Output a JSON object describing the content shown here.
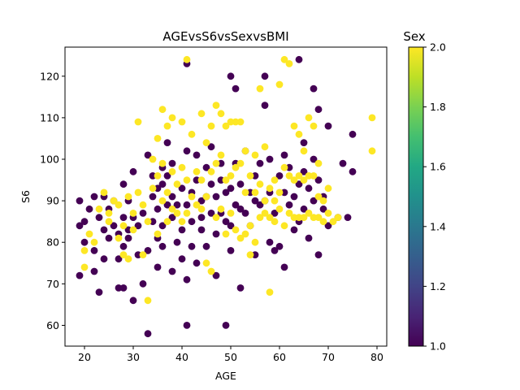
{
  "chart_data": {
    "type": "scatter",
    "title": "AGEvsS6vsSexvsBMI",
    "xlabel": "AGE",
    "ylabel": "S6",
    "xlim": [
      16,
      82
    ],
    "ylim": [
      55,
      127
    ],
    "xticks": [
      20,
      30,
      40,
      50,
      60,
      70,
      80
    ],
    "yticks": [
      60,
      70,
      80,
      90,
      100,
      110,
      120
    ],
    "grid": false,
    "colorbar": {
      "label": "Sex",
      "range": [
        1.0,
        2.0
      ],
      "ticks": [
        "1.0",
        "1.2",
        "1.4",
        "1.6",
        "1.8",
        "2.0"
      ],
      "colormap": "viridis"
    },
    "colors": {
      "sex_1": "#440154",
      "sex_2": "#fde725"
    },
    "series": [
      {
        "sex": 1,
        "points": [
          [
            19,
            72
          ],
          [
            19,
            84
          ],
          [
            19,
            90
          ],
          [
            20,
            85
          ],
          [
            20,
            80
          ],
          [
            21,
            88
          ],
          [
            22,
            91
          ],
          [
            22,
            78
          ],
          [
            22,
            73
          ],
          [
            23,
            68
          ],
          [
            23,
            86
          ],
          [
            24,
            91
          ],
          [
            24,
            83
          ],
          [
            24,
            76
          ],
          [
            25,
            81
          ],
          [
            25,
            88
          ],
          [
            26,
            84
          ],
          [
            26,
            90
          ],
          [
            27,
            76
          ],
          [
            27,
            69
          ],
          [
            27,
            82
          ],
          [
            28,
            86
          ],
          [
            28,
            69
          ],
          [
            28,
            79
          ],
          [
            28,
            94
          ],
          [
            29,
            90
          ],
          [
            29,
            81
          ],
          [
            29,
            83
          ],
          [
            30,
            97
          ],
          [
            30,
            86
          ],
          [
            30,
            66
          ],
          [
            31,
            77
          ],
          [
            31,
            84
          ],
          [
            32,
            87
          ],
          [
            32,
            70
          ],
          [
            33,
            78
          ],
          [
            33,
            58
          ],
          [
            33,
            101
          ],
          [
            34,
            85
          ],
          [
            34,
            91
          ],
          [
            34,
            96
          ],
          [
            35,
            88
          ],
          [
            35,
            81
          ],
          [
            35,
            74
          ],
          [
            35,
            93
          ],
          [
            36,
            98
          ],
          [
            36,
            79
          ],
          [
            36,
            84
          ],
          [
            36,
            94
          ],
          [
            37,
            104
          ],
          [
            37,
            89
          ],
          [
            37,
            96
          ],
          [
            38,
            91
          ],
          [
            38,
            73
          ],
          [
            38,
            86
          ],
          [
            38,
            99
          ],
          [
            39,
            80
          ],
          [
            39,
            89
          ],
          [
            40,
            83
          ],
          [
            40,
            76
          ],
          [
            40,
            93
          ],
          [
            41,
            123
          ],
          [
            41,
            60
          ],
          [
            41,
            102
          ],
          [
            41,
            89
          ],
          [
            41,
            71
          ],
          [
            42,
            79
          ],
          [
            42,
            92
          ],
          [
            42,
            85
          ],
          [
            43,
            101
          ],
          [
            43,
            95
          ],
          [
            43,
            75
          ],
          [
            44,
            90
          ],
          [
            44,
            83
          ],
          [
            44,
            86
          ],
          [
            45,
            98
          ],
          [
            45,
            79
          ],
          [
            45,
            91
          ],
          [
            46,
            103
          ],
          [
            46,
            87
          ],
          [
            46,
            94
          ],
          [
            47,
            82
          ],
          [
            47,
            91
          ],
          [
            47,
            72
          ],
          [
            48,
            95
          ],
          [
            48,
            87
          ],
          [
            48,
            99
          ],
          [
            49,
            60
          ],
          [
            49,
            85
          ],
          [
            49,
            92
          ],
          [
            50,
            120
          ],
          [
            50,
            84
          ],
          [
            50,
            78
          ],
          [
            50,
            93
          ],
          [
            51,
            117
          ],
          [
            51,
            89
          ],
          [
            51,
            99
          ],
          [
            52,
            88
          ],
          [
            52,
            69
          ],
          [
            52,
            94
          ],
          [
            53,
            102
          ],
          [
            53,
            87
          ],
          [
            54,
            84
          ],
          [
            54,
            92
          ],
          [
            55,
            90
          ],
          [
            55,
            77
          ],
          [
            55,
            96
          ],
          [
            56,
            89
          ],
          [
            56,
            99
          ],
          [
            57,
            120
          ],
          [
            57,
            113
          ],
          [
            57,
            90
          ],
          [
            58,
            92
          ],
          [
            58,
            80
          ],
          [
            58,
            100
          ],
          [
            59,
            78
          ],
          [
            59,
            87
          ],
          [
            60,
            79
          ],
          [
            60,
            96
          ],
          [
            61,
            74
          ],
          [
            61,
            92
          ],
          [
            61,
            101
          ],
          [
            62,
            89
          ],
          [
            62,
            98
          ],
          [
            63,
            83
          ],
          [
            63,
            91
          ],
          [
            64,
            124
          ],
          [
            64,
            94
          ],
          [
            64,
            85
          ],
          [
            65,
            104
          ],
          [
            65,
            88
          ],
          [
            65,
            97
          ],
          [
            66,
            81
          ],
          [
            66,
            93
          ],
          [
            67,
            117
          ],
          [
            67,
            100
          ],
          [
            67,
            90
          ],
          [
            68,
            112
          ],
          [
            68,
            95
          ],
          [
            68,
            77
          ],
          [
            69,
            88
          ],
          [
            69,
            91
          ],
          [
            70,
            108
          ],
          [
            70,
            84
          ],
          [
            72,
            86
          ],
          [
            73,
            99
          ],
          [
            74,
            86
          ],
          [
            75,
            106
          ],
          [
            75,
            97
          ]
        ]
      },
      {
        "sex": 2,
        "points": [
          [
            20,
            74
          ],
          [
            20,
            78
          ],
          [
            21,
            82
          ],
          [
            22,
            80
          ],
          [
            23,
            88
          ],
          [
            24,
            92
          ],
          [
            25,
            85
          ],
          [
            25,
            87
          ],
          [
            26,
            90
          ],
          [
            27,
            89
          ],
          [
            27,
            81
          ],
          [
            28,
            84
          ],
          [
            28,
            77
          ],
          [
            29,
            91
          ],
          [
            29,
            76
          ],
          [
            30,
            83
          ],
          [
            30,
            87
          ],
          [
            31,
            109
          ],
          [
            31,
            92
          ],
          [
            32,
            89
          ],
          [
            32,
            77
          ],
          [
            33,
            66
          ],
          [
            33,
            85
          ],
          [
            34,
            100
          ],
          [
            34,
            93
          ],
          [
            35,
            96
          ],
          [
            35,
            105
          ],
          [
            35,
            82
          ],
          [
            36,
            112
          ],
          [
            36,
            90
          ],
          [
            36,
            99
          ],
          [
            37,
            108
          ],
          [
            37,
            92
          ],
          [
            37,
            85
          ],
          [
            38,
            110
          ],
          [
            38,
            97
          ],
          [
            38,
            88
          ],
          [
            39,
            87
          ],
          [
            39,
            94
          ],
          [
            40,
            109
          ],
          [
            40,
            98
          ],
          [
            40,
            85
          ],
          [
            41,
            124
          ],
          [
            41,
            95
          ],
          [
            41,
            87
          ],
          [
            42,
            106
          ],
          [
            42,
            91
          ],
          [
            43,
            97
          ],
          [
            43,
            89
          ],
          [
            44,
            111
          ],
          [
            44,
            95
          ],
          [
            44,
            88
          ],
          [
            45,
            104
          ],
          [
            45,
            91
          ],
          [
            45,
            75
          ],
          [
            46,
            108
          ],
          [
            46,
            97
          ],
          [
            46,
            73
          ],
          [
            47,
            113
          ],
          [
            47,
            99
          ],
          [
            47,
            86
          ],
          [
            48,
            111
          ],
          [
            48,
            101
          ],
          [
            48,
            88
          ],
          [
            49,
            95
          ],
          [
            49,
            82
          ],
          [
            49,
            108
          ],
          [
            50,
            109
          ],
          [
            50,
            96
          ],
          [
            50,
            87
          ],
          [
            51,
            109
          ],
          [
            51,
            98
          ],
          [
            51,
            83
          ],
          [
            52,
            109
          ],
          [
            52,
            99
          ],
          [
            52,
            81
          ],
          [
            53,
            102
          ],
          [
            53,
            92
          ],
          [
            53,
            82
          ],
          [
            54,
            96
          ],
          [
            54,
            84
          ],
          [
            54,
            77
          ],
          [
            55,
            101
          ],
          [
            55,
            92
          ],
          [
            55,
            80
          ],
          [
            56,
            117
          ],
          [
            56,
            94
          ],
          [
            56,
            86
          ],
          [
            57,
            103
          ],
          [
            57,
            90
          ],
          [
            57,
            87
          ],
          [
            58,
            68
          ],
          [
            58,
            93
          ],
          [
            58,
            86
          ],
          [
            59,
            95
          ],
          [
            59,
            90
          ],
          [
            59,
            85
          ],
          [
            60,
            118
          ],
          [
            60,
            92
          ],
          [
            60,
            88
          ],
          [
            61,
            124
          ],
          [
            61,
            98
          ],
          [
            61,
            84
          ],
          [
            62,
            123
          ],
          [
            62,
            96
          ],
          [
            62,
            87
          ],
          [
            63,
            108
          ],
          [
            63,
            95
          ],
          [
            63,
            86
          ],
          [
            64,
            106
          ],
          [
            64,
            96
          ],
          [
            64,
            86
          ],
          [
            65,
            102
          ],
          [
            65,
            95
          ],
          [
            65,
            86
          ],
          [
            66,
            110
          ],
          [
            66,
            96
          ],
          [
            66,
            87
          ],
          [
            67,
            108
          ],
          [
            67,
            96
          ],
          [
            67,
            86
          ],
          [
            68,
            99
          ],
          [
            68,
            91
          ],
          [
            68,
            86
          ],
          [
            69,
            90
          ],
          [
            69,
            85
          ],
          [
            70,
            93
          ],
          [
            70,
            87
          ],
          [
            71,
            85
          ],
          [
            72,
            86
          ],
          [
            79,
            110
          ],
          [
            79,
            102
          ]
        ]
      }
    ]
  }
}
